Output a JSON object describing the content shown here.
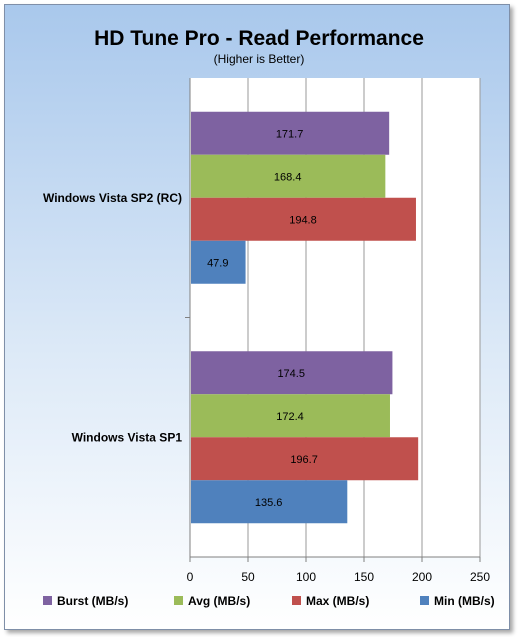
{
  "chart_data": {
    "type": "bar",
    "orientation": "horizontal",
    "title": "HD Tune Pro - Read Performance",
    "subtitle": "(Higher is Better)",
    "categories": [
      "Windows Vista SP2 (RC)",
      "Windows Vista SP1"
    ],
    "series": [
      {
        "name": "Burst (MB/s)",
        "color": "#7e62a1",
        "values": [
          171.7,
          174.5
        ]
      },
      {
        "name": "Avg (MB/s)",
        "color": "#9bbb59",
        "values": [
          168.4,
          172.4
        ]
      },
      {
        "name": "Max (MB/s)",
        "color": "#c0504d",
        "values": [
          194.8,
          196.7
        ]
      },
      {
        "name": "Min (MB/s)",
        "color": "#4f81bd",
        "values": [
          47.9,
          135.6
        ]
      }
    ],
    "xlim": [
      0,
      250
    ],
    "xticks": [
      0,
      50,
      100,
      150,
      200,
      250
    ],
    "grid": true,
    "legend": "bottom",
    "value_labels": true
  }
}
